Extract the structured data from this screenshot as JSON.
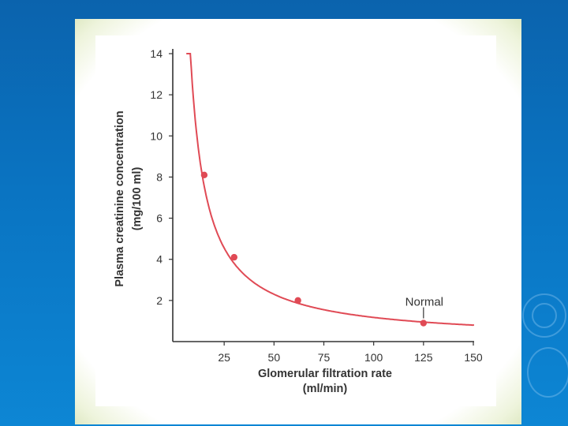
{
  "chart_data": {
    "type": "line",
    "title": "",
    "xlabel": "Glomerular filtration rate",
    "xlabel_unit": "(ml/min)",
    "ylabel": "Plasma creatinine concentration",
    "ylabel_unit": "(mg/100 ml)",
    "xlim": [
      0,
      150
    ],
    "ylim": [
      0,
      14
    ],
    "x_ticks": [
      25,
      50,
      75,
      100,
      125,
      150
    ],
    "y_ticks": [
      2,
      4,
      6,
      8,
      10,
      12,
      14
    ],
    "series": [
      {
        "name": "creatinine",
        "color": "#e04a55",
        "curve": "y = 112.5 / x (+ small baseline)",
        "x_range": [
          6,
          156
        ],
        "points": [
          {
            "x": 15,
            "y": 8.1
          },
          {
            "x": 30,
            "y": 4.1
          },
          {
            "x": 62,
            "y": 2.0
          },
          {
            "x": 125,
            "y": 0.9
          }
        ]
      }
    ],
    "annotations": [
      {
        "text": "Normal",
        "x": 125,
        "y": 0.9
      }
    ]
  }
}
